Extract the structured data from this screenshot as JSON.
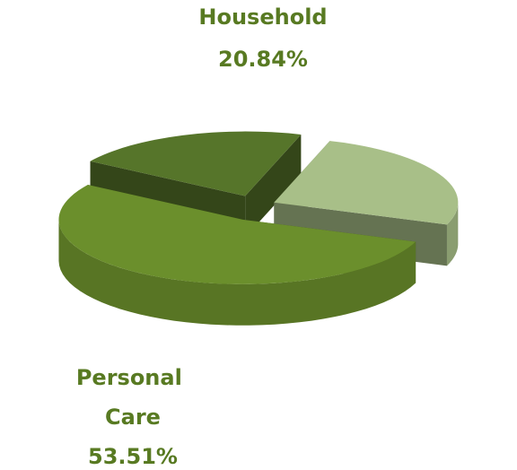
{
  "chart_data": {
    "type": "pie",
    "categories": [
      "Personal Care",
      "Household",
      null
    ],
    "values": [
      53.51,
      20.84,
      25.65
    ],
    "value_labels": [
      "53.51%",
      "20.84%",
      null
    ],
    "colors": [
      "#6b8f2c",
      "#56752a",
      "#a8bf88"
    ]
  }
}
